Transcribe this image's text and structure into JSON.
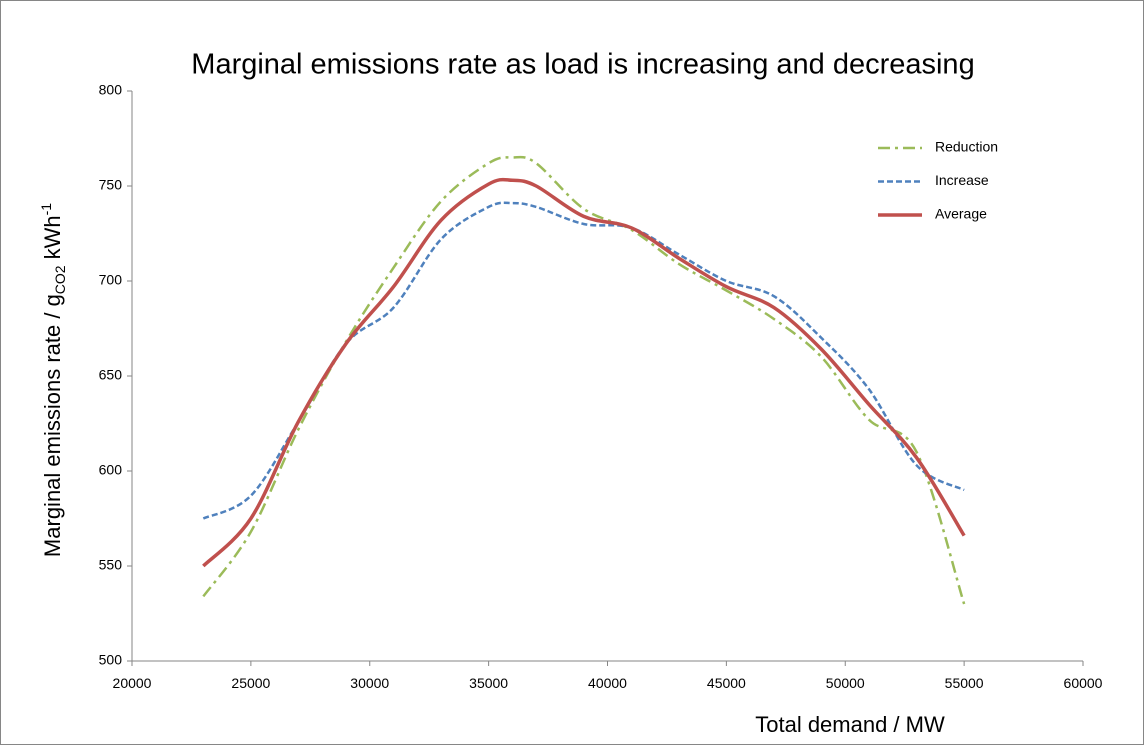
{
  "chart_data": {
    "type": "line",
    "title": "Marginal emissions rate as load is increasing and decreasing",
    "x_label": "Total demand / MW",
    "y_label": {
      "main": "Marginal emissions rate / g",
      "sub": "CO2",
      "unit": "kWh",
      "sup": "-1"
    },
    "x": [
      23000,
      25000,
      27000,
      29000,
      31000,
      33000,
      35000,
      36000,
      37000,
      39000,
      41000,
      43000,
      45000,
      47000,
      49000,
      51000,
      53000,
      55000
    ],
    "series": [
      {
        "name": "Reduction",
        "color": "#9bbb59",
        "dash": "dash-dot",
        "values": [
          534,
          568,
          622,
          668,
          707,
          742,
          762,
          765,
          762,
          738,
          727,
          709,
          695,
          680,
          660,
          627,
          610,
          530
        ]
      },
      {
        "name": "Increase",
        "color": "#4f81bd",
        "dash": "dashed",
        "values": [
          575,
          587,
          626,
          667,
          686,
          722,
          739,
          741,
          739,
          730,
          728,
          714,
          700,
          692,
          670,
          643,
          603,
          590
        ]
      },
      {
        "name": "Average",
        "color": "#c0504d",
        "dash": "solid",
        "values": [
          550,
          575,
          626,
          667,
          697,
          732,
          751,
          753,
          750,
          734,
          728,
          712,
          697,
          686,
          664,
          635,
          607,
          566
        ]
      }
    ],
    "xlim": [
      20000,
      60000
    ],
    "xticks": [
      20000,
      25000,
      30000,
      35000,
      40000,
      45000,
      50000,
      55000,
      60000
    ],
    "ylim": [
      500,
      800
    ],
    "yticks": [
      500,
      550,
      600,
      650,
      700,
      750,
      800
    ],
    "grid": false,
    "legend": "top-right"
  }
}
